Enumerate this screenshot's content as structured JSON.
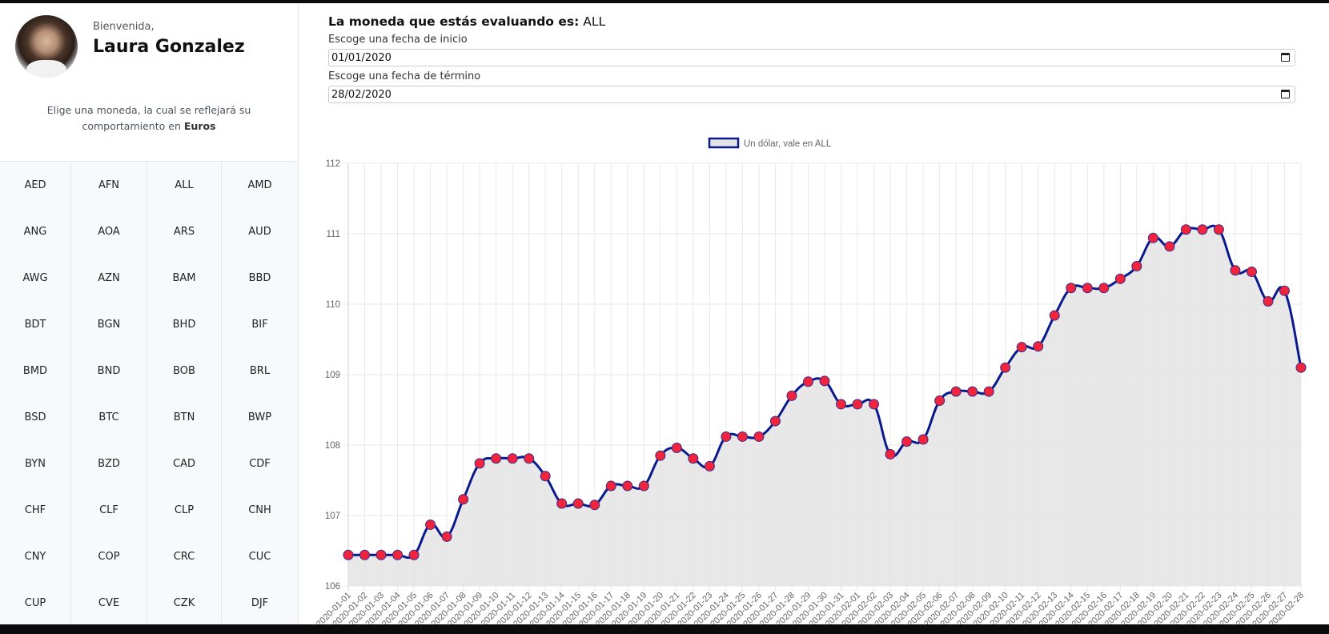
{
  "user": {
    "greeting": "Bienvenida,",
    "name": "Laura Gonzalez"
  },
  "sidebar": {
    "description_prefix": "Elige una moneda, la cual se reflejará su comportamiento en",
    "description_bold": "Euros",
    "currencies": [
      "AED",
      "AFN",
      "ALL",
      "AMD",
      "ANG",
      "AOA",
      "ARS",
      "AUD",
      "AWG",
      "AZN",
      "BAM",
      "BBD",
      "BDT",
      "BGN",
      "BHD",
      "BIF",
      "BMD",
      "BND",
      "BOB",
      "BRL",
      "BSD",
      "BTC",
      "BTN",
      "BWP",
      "BYN",
      "BZD",
      "CAD",
      "CDF",
      "CHF",
      "CLF",
      "CLP",
      "CNH",
      "CNY",
      "COP",
      "CRC",
      "CUC",
      "CUP",
      "CVE",
      "CZK",
      "DJF"
    ]
  },
  "main": {
    "title_label": "La moneda que estás evaluando es:",
    "title_value": "ALL",
    "start_label": "Escoge una fecha de inicio",
    "start_value": "01/01/2020",
    "end_label": "Escoge una fecha de término",
    "end_value": "28/02/2020"
  },
  "chart_data": {
    "type": "area",
    "legend": {
      "label": "Un dólar, vale en ALL",
      "placement": "top-center"
    },
    "x": [
      "2020-01-01",
      "2020-01-02",
      "2020-01-03",
      "2020-01-04",
      "2020-01-05",
      "2020-01-06",
      "2020-01-07",
      "2020-01-08",
      "2020-01-09",
      "2020-01-10",
      "2020-01-11",
      "2020-01-12",
      "2020-01-13",
      "2020-01-14",
      "2020-01-15",
      "2020-01-16",
      "2020-01-17",
      "2020-01-18",
      "2020-01-19",
      "2020-01-20",
      "2020-01-21",
      "2020-01-22",
      "2020-01-23",
      "2020-01-24",
      "2020-01-25",
      "2020-01-26",
      "2020-01-27",
      "2020-01-28",
      "2020-01-29",
      "2020-01-30",
      "2020-01-31",
      "2020-02-01",
      "2020-02-02",
      "2020-02-03",
      "2020-02-04",
      "2020-02-05",
      "2020-02-06",
      "2020-02-07",
      "2020-02-08",
      "2020-02-09",
      "2020-02-10",
      "2020-02-11",
      "2020-02-12",
      "2020-02-13",
      "2020-02-14",
      "2020-02-15",
      "2020-02-16",
      "2020-02-17",
      "2020-02-18",
      "2020-02-19",
      "2020-02-20",
      "2020-02-21",
      "2020-02-22",
      "2020-02-23",
      "2020-02-24",
      "2020-02-25",
      "2020-02-26",
      "2020-02-27",
      "2020-02-28"
    ],
    "values": [
      106.44,
      106.44,
      106.44,
      106.44,
      106.44,
      106.87,
      106.7,
      107.23,
      107.74,
      107.81,
      107.81,
      107.81,
      107.56,
      107.17,
      107.17,
      107.15,
      107.42,
      107.42,
      107.42,
      107.85,
      107.96,
      107.81,
      107.7,
      108.12,
      108.12,
      108.12,
      108.34,
      108.7,
      108.9,
      108.91,
      108.58,
      108.58,
      108.58,
      107.87,
      108.05,
      108.08,
      108.63,
      108.76,
      108.76,
      108.76,
      109.1,
      109.39,
      109.4,
      109.84,
      110.23,
      110.23,
      110.23,
      110.36,
      110.54,
      110.94,
      110.82,
      111.06,
      111.06,
      111.06,
      110.48,
      110.46,
      110.04,
      110.19,
      109.1
    ],
    "ylim": [
      106,
      112
    ],
    "yticks": [
      106,
      107,
      108,
      109,
      110,
      111,
      112
    ],
    "grid": true,
    "colors": {
      "line": "#0a1a8c",
      "fill": "#e4e4e4",
      "point": "#f0243c"
    }
  }
}
